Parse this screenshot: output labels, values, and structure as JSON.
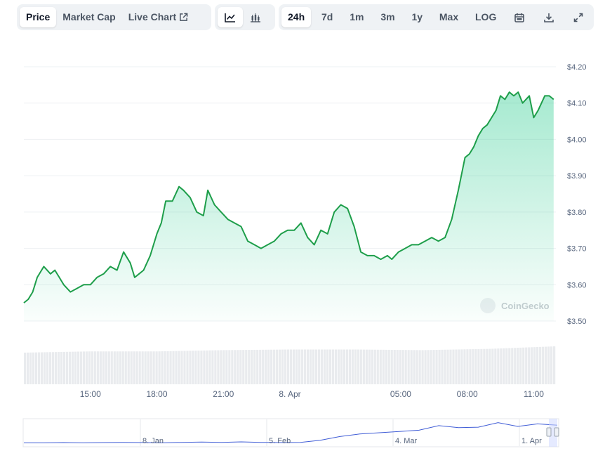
{
  "colors": {
    "line": "#16c784",
    "line_dark": "#1e9e4a",
    "grid": "#eef0f3",
    "axis_text": "#58667e",
    "toolbar_bg": "#eff2f5"
  },
  "toolbar": {
    "tabs": [
      {
        "label": "Price",
        "active": true
      },
      {
        "label": "Market Cap",
        "active": false
      },
      {
        "label": "Live Chart",
        "active": false,
        "icon": "external-link-icon"
      }
    ],
    "chart_types": [
      {
        "icon": "line-chart-icon",
        "active": true
      },
      {
        "icon": "candlestick-icon",
        "active": false
      }
    ],
    "ranges": [
      {
        "label": "24h",
        "active": true
      },
      {
        "label": "7d",
        "active": false
      },
      {
        "label": "1m",
        "active": false
      },
      {
        "label": "3m",
        "active": false
      },
      {
        "label": "1y",
        "active": false
      },
      {
        "label": "Max",
        "active": false
      },
      {
        "label": "LOG",
        "active": false
      }
    ],
    "tools": [
      {
        "icon": "calendar-icon"
      },
      {
        "icon": "download-icon"
      },
      {
        "icon": "expand-icon"
      }
    ]
  },
  "watermark": "CoinGecko",
  "chart_data": {
    "type": "area",
    "y_ticks": [
      "$4.20",
      "$4.10",
      "$4.00",
      "$3.90",
      "$3.80",
      "$3.70",
      "$3.60",
      "$3.50"
    ],
    "y_tick_values": [
      4.2,
      4.1,
      4.0,
      3.9,
      3.8,
      3.7,
      3.6,
      3.5
    ],
    "ylim": [
      3.5,
      4.2
    ],
    "x_ticks": [
      "15:00",
      "18:00",
      "21:00",
      "8. Apr",
      "05:00",
      "08:00",
      "11:00"
    ],
    "x_tick_hours": [
      3,
      6,
      9,
      12,
      17,
      20,
      23
    ],
    "xlim_hours": [
      0,
      24
    ],
    "price_series": {
      "x_hours": [
        0,
        0.2,
        0.4,
        0.6,
        0.9,
        1.2,
        1.4,
        1.6,
        1.8,
        2.1,
        2.4,
        2.7,
        3.0,
        3.3,
        3.6,
        3.9,
        4.2,
        4.5,
        4.8,
        5.0,
        5.2,
        5.4,
        5.7,
        6.0,
        6.2,
        6.4,
        6.7,
        7.0,
        7.2,
        7.5,
        7.8,
        8.1,
        8.3,
        8.6,
        8.9,
        9.2,
        9.5,
        9.8,
        10.1,
        10.4,
        10.7,
        11.0,
        11.3,
        11.6,
        11.9,
        12.2,
        12.5,
        12.8,
        13.1,
        13.4,
        13.7,
        14.0,
        14.3,
        14.6,
        14.9,
        15.2,
        15.5,
        15.8,
        16.1,
        16.4,
        16.6,
        16.9,
        17.2,
        17.5,
        17.8,
        18.1,
        18.4,
        18.7,
        19.0,
        19.3,
        19.6,
        19.9,
        20.1,
        20.3,
        20.5,
        20.7,
        20.9,
        21.1,
        21.3,
        21.5,
        21.7,
        21.9,
        22.1,
        22.3,
        22.5,
        22.8,
        23.0,
        23.2,
        23.5,
        23.7,
        23.9
      ],
      "values": [
        3.55,
        3.56,
        3.58,
        3.62,
        3.65,
        3.63,
        3.64,
        3.62,
        3.6,
        3.58,
        3.59,
        3.6,
        3.6,
        3.62,
        3.63,
        3.65,
        3.64,
        3.69,
        3.66,
        3.62,
        3.63,
        3.64,
        3.68,
        3.74,
        3.77,
        3.83,
        3.83,
        3.87,
        3.86,
        3.84,
        3.8,
        3.79,
        3.86,
        3.82,
        3.8,
        3.78,
        3.77,
        3.76,
        3.72,
        3.71,
        3.7,
        3.71,
        3.72,
        3.74,
        3.75,
        3.75,
        3.77,
        3.73,
        3.71,
        3.75,
        3.74,
        3.8,
        3.82,
        3.81,
        3.76,
        3.69,
        3.68,
        3.68,
        3.67,
        3.68,
        3.67,
        3.69,
        3.7,
        3.71,
        3.71,
        3.72,
        3.73,
        3.72,
        3.73,
        3.78,
        3.86,
        3.95,
        3.96,
        3.98,
        4.01,
        4.03,
        4.04,
        4.06,
        4.08,
        4.12,
        4.11,
        4.13,
        4.12,
        4.13,
        4.1,
        4.12,
        4.06,
        4.08,
        4.12,
        4.12,
        4.11
      ]
    },
    "volume_series": {
      "x_hours": [
        0,
        3,
        6,
        9,
        12,
        15,
        18,
        21,
        24
      ],
      "relative_values": [
        0.5,
        0.52,
        0.52,
        0.54,
        0.55,
        0.55,
        0.54,
        0.56,
        0.6
      ]
    },
    "navigator": {
      "labels": [
        "8. Jan",
        "5. Feb",
        "4. Mar",
        "1. Apr"
      ],
      "relative_values": [
        0.1,
        0.1,
        0.11,
        0.1,
        0.11,
        0.12,
        0.11,
        0.1,
        0.12,
        0.13,
        0.12,
        0.14,
        0.12,
        0.11,
        0.12,
        0.2,
        0.35,
        0.45,
        0.5,
        0.55,
        0.6,
        0.78,
        0.7,
        0.72,
        0.9,
        0.75,
        0.85,
        0.8
      ]
    }
  }
}
